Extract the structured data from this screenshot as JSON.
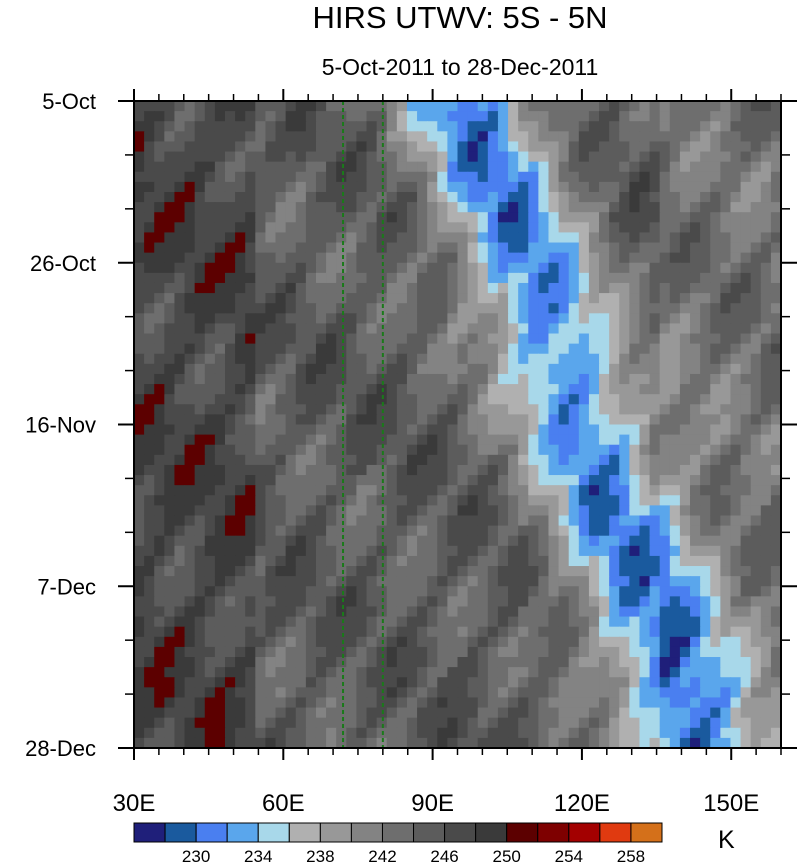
{
  "chart_data": {
    "type": "heatmap",
    "title": "HIRS UTWV: 5S - 5N",
    "subtitle": "5-Oct-2011 to 28-Dec-2011",
    "units": "K",
    "x_axis": {
      "range": [
        30,
        160
      ],
      "ticks": [
        30,
        60,
        90,
        120,
        150
      ],
      "tick_labels": [
        "30E",
        "60E",
        "90E",
        "120E",
        "150E"
      ]
    },
    "y_axis": {
      "range": [
        "5-Oct-2011",
        "28-Dec-2011"
      ],
      "tick_labels": [
        "5-Oct",
        "26-Oct",
        "16-Nov",
        "7-Dec",
        "28-Dec"
      ]
    },
    "reference_lines_lon": [
      72,
      80
    ],
    "colorbar": {
      "levels": [
        228,
        230,
        232,
        234,
        236,
        238,
        240,
        242,
        244,
        246,
        248,
        250,
        252,
        254,
        256,
        258,
        260
      ],
      "labels": [
        "230",
        "234",
        "238",
        "242",
        "246",
        "250",
        "254",
        "258"
      ],
      "colors": [
        "#1f1f7a",
        "#1a5a9e",
        "#4a7ff0",
        "#5aa6ec",
        "#a8d8ea",
        "#b0b0b0",
        "#989898",
        "#838383",
        "#6e6e6e",
        "#5c5c5c",
        "#4a4a4a",
        "#3a3a3a",
        "#5c0000",
        "#7e0000",
        "#a30000",
        "#e03a10",
        "#d4701a"
      ]
    },
    "grid": false,
    "colorbar_position": "bottom"
  }
}
